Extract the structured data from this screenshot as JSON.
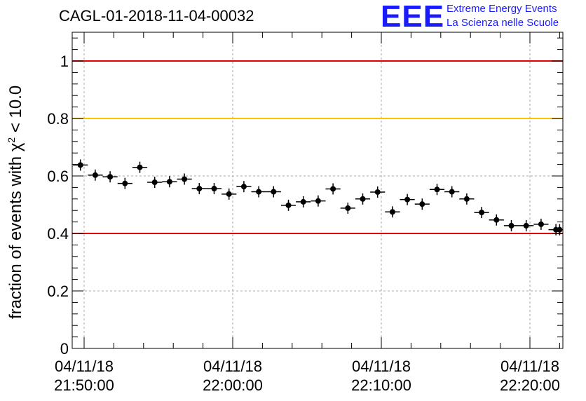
{
  "header": {
    "run_title": "CAGL-01-2018-11-04-00032",
    "logo_mark": "EEE",
    "logo_line1": "Extreme Energy Events",
    "logo_line2": "La Scienza nelle Scuole"
  },
  "chart_data": {
    "type": "scatter",
    "ylabel_prefix": "fraction of events with ",
    "ylabel_symbol": "χ",
    "ylabel_sup": "2",
    "ylabel_suffix": " < 10.0",
    "ylim": [
      0,
      1.1
    ],
    "y_ticks": [
      0,
      0.2,
      0.4,
      0.6,
      0.8,
      1
    ],
    "y_tick_labels": [
      "0",
      "0.2",
      "0.4",
      "0.6",
      "0.8",
      "1"
    ],
    "grid": true,
    "x_ticks": [
      {
        "date": "04/11/18",
        "time": "21:50:00"
      },
      {
        "date": "04/11/18",
        "time": "22:00:00"
      },
      {
        "date": "04/11/18",
        "time": "22:10:00"
      },
      {
        "date": "04/11/18",
        "time": "22:20:00"
      }
    ],
    "reference_lines": [
      {
        "y": 1.0,
        "color": "#e60000"
      },
      {
        "y": 0.8,
        "color": "#ffc000"
      },
      {
        "y": 0.4,
        "color": "#e60000"
      }
    ],
    "x": [
      "21:49:45",
      "21:50:45",
      "21:51:45",
      "21:52:45",
      "21:53:45",
      "21:54:45",
      "21:55:45",
      "21:56:45",
      "21:57:45",
      "21:58:45",
      "21:59:45",
      "22:00:45",
      "22:01:45",
      "22:02:45",
      "22:03:45",
      "22:04:45",
      "22:05:45",
      "22:06:45",
      "22:07:45",
      "22:08:45",
      "22:09:45",
      "22:10:45",
      "22:11:45",
      "22:12:45",
      "22:13:45",
      "22:14:45",
      "22:15:45",
      "22:16:45",
      "22:17:45",
      "22:18:45",
      "22:19:45",
      "22:20:45",
      "22:21:45",
      "22:22:00"
    ],
    "values": [
      0.638,
      0.603,
      0.597,
      0.574,
      0.63,
      0.578,
      0.58,
      0.589,
      0.556,
      0.556,
      0.537,
      0.563,
      0.545,
      0.545,
      0.498,
      0.51,
      0.513,
      0.555,
      0.488,
      0.52,
      0.544,
      0.475,
      0.518,
      0.502,
      0.553,
      0.545,
      0.52,
      0.473,
      0.447,
      0.427,
      0.427,
      0.432,
      0.413,
      0.413
    ],
    "series_color": "#000000"
  }
}
